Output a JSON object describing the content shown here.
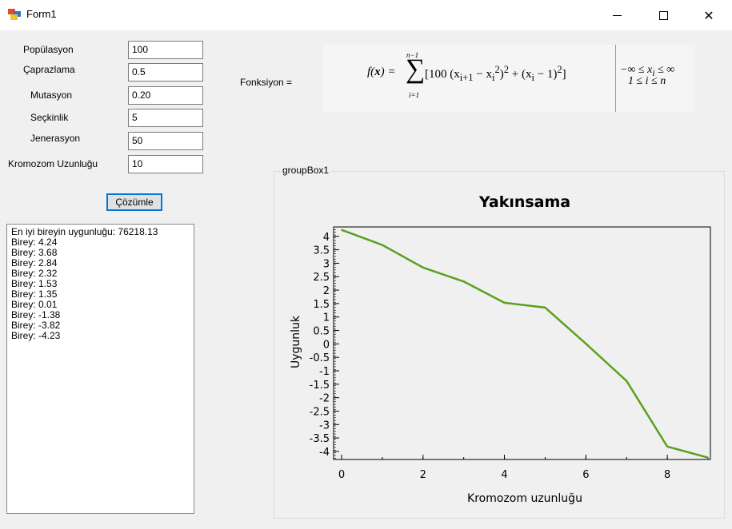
{
  "window": {
    "title": "Form1",
    "icon": "winforms-app-icon",
    "controls": [
      "minimize-icon",
      "maximize-icon",
      "close-icon"
    ]
  },
  "form": {
    "populasyon": {
      "label": "Popülasyon",
      "value": "100"
    },
    "caprazlama": {
      "label": "Çaprazlama",
      "value": "0.5"
    },
    "mutasyon": {
      "label": "Mutasyon",
      "value": "0.20"
    },
    "seckinlik": {
      "label": "Seçkinlik",
      "value": "5"
    },
    "jenerasyon": {
      "label": "Jenerasyon",
      "value": "50"
    },
    "kromozom": {
      "label": "Kromozom Uzunluğu",
      "value": "10"
    },
    "solve_label": "Çözümle"
  },
  "results": {
    "best": "En iyi bireyin uygunluğu: 76218.13",
    "lines": [
      "Birey: 4.24",
      "Birey: 3.68",
      "Birey: 2.84",
      "Birey: 2.32",
      "Birey: 1.53",
      "Birey: 1.35",
      "Birey: 0.01",
      "Birey: -1.38",
      "Birey: -3.82",
      "Birey: -4.23"
    ]
  },
  "function": {
    "label": "Fonksiyon ="
  },
  "group": {
    "title": "groupBox1"
  },
  "chart_data": {
    "type": "line",
    "title": "Yakınsama",
    "xlabel": "Kromozom uzunluğu",
    "ylabel": "Uygunluk",
    "x": [
      0,
      1,
      2,
      3,
      4,
      5,
      6,
      7,
      8,
      9
    ],
    "series": [
      {
        "values": [
          4.24,
          3.68,
          2.84,
          2.32,
          1.53,
          1.35,
          0.01,
          -1.38,
          -3.82,
          -4.23
        ],
        "color": "#5aa01e"
      }
    ],
    "xlim": [
      0,
      9
    ],
    "ylim": [
      -4.3,
      4.35
    ],
    "xticks": [
      0,
      2,
      4,
      6,
      8
    ],
    "yticks": [
      4,
      3.5,
      3,
      2.5,
      2,
      1.5,
      1,
      0.5,
      0,
      -0.5,
      -1,
      -1.5,
      -2,
      -2.5,
      -3,
      -3.5,
      -4
    ],
    "grid": false,
    "legend": "none"
  }
}
